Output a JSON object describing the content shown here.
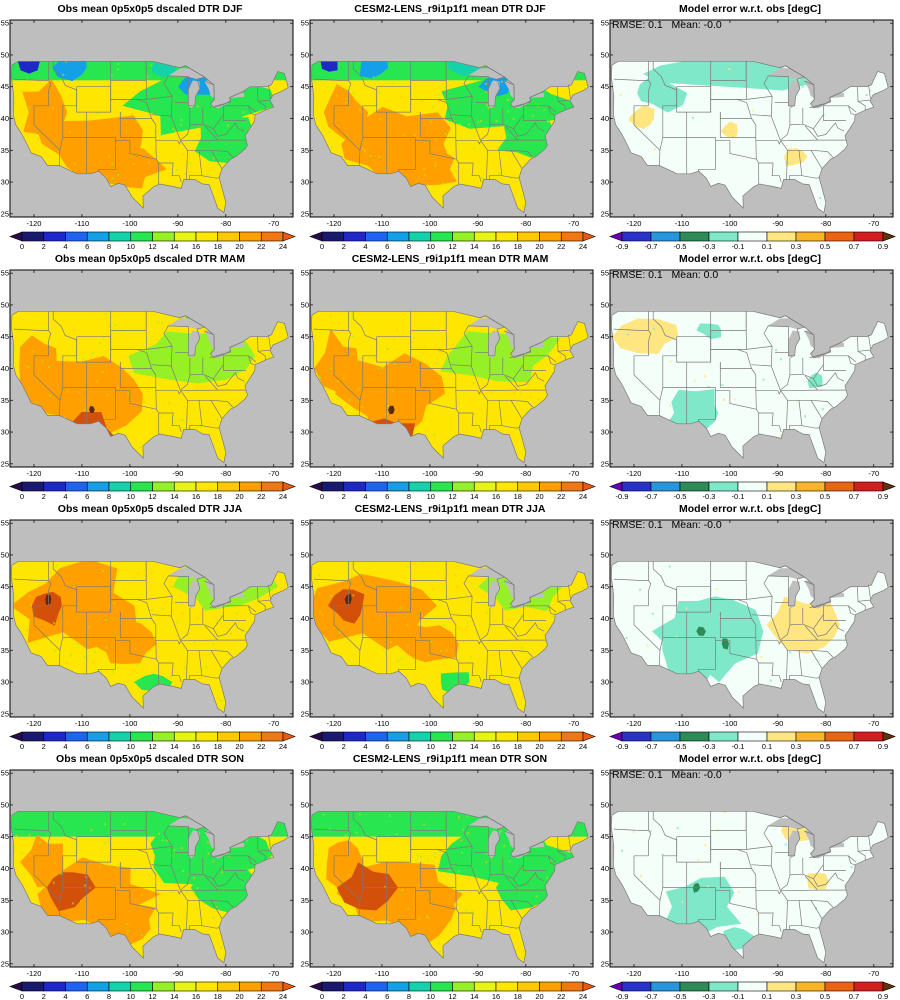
{
  "figure": {
    "panels": [
      {
        "title": "Obs mean 0p5x0p5 dscaled DTR DJF",
        "kind": "obs",
        "season": "DJF"
      },
      {
        "title": "CESM2-LENS_r9i1p1f1 mean DTR DJF",
        "kind": "model",
        "season": "DJF"
      },
      {
        "title": "Model error w.r.t. obs [degC]",
        "kind": "error",
        "season": "DJF",
        "annotation": "RMSE: 0.1   Mean: -0.0"
      },
      {
        "title": "Obs mean 0p5x0p5 dscaled DTR MAM",
        "kind": "obs",
        "season": "MAM"
      },
      {
        "title": "CESM2-LENS_r9i1p1f1 mean DTR MAM",
        "kind": "model",
        "season": "MAM"
      },
      {
        "title": "Model error w.r.t. obs [degC]",
        "kind": "error",
        "season": "MAM",
        "annotation": "RMSE: 0.1   Mean: 0.0"
      },
      {
        "title": "Obs mean 0p5x0p5 dscaled DTR JJA",
        "kind": "obs",
        "season": "JJA"
      },
      {
        "title": "CESM2-LENS_r9i1p1f1 mean DTR JJA",
        "kind": "model",
        "season": "JJA"
      },
      {
        "title": "Model error w.r.t. obs [degC]",
        "kind": "error",
        "season": "JJA",
        "annotation": "RMSE: 0.1   Mean: -0.0"
      },
      {
        "title": "Obs mean 0p5x0p5 dscaled DTR SON",
        "kind": "obs",
        "season": "SON"
      },
      {
        "title": "CESM2-LENS_r9i1p1f1 mean DTR SON",
        "kind": "model",
        "season": "SON"
      },
      {
        "title": "Model error w.r.t. obs [degC]",
        "kind": "error",
        "season": "SON",
        "annotation": "RMSE: 0.1   Mean: -0.0"
      }
    ],
    "lon_ticks": [
      -120,
      -110,
      -100,
      -90,
      -80,
      -70
    ],
    "lat_ticks": [
      25,
      30,
      35,
      40,
      45,
      50,
      55
    ],
    "lon_range": [
      -125,
      -66
    ],
    "lat_range": [
      24.5,
      55.5
    ],
    "obs_colorbar": {
      "labels": [
        "0",
        "2",
        "4",
        "6",
        "8",
        "10",
        "12",
        "14",
        "16",
        "18",
        "20",
        "22",
        "24"
      ],
      "colors": [
        "#2a0a4a",
        "#191970",
        "#1e28c8",
        "#1e64f0",
        "#14a0e6",
        "#14d2aa",
        "#28e650",
        "#96f028",
        "#e6f514",
        "#ffe600",
        "#ffc800",
        "#ffa000",
        "#f07814",
        "#e65a14"
      ]
    },
    "error_colorbar": {
      "labels": [
        "-0.9",
        "-0.7",
        "-0.5",
        "-0.3",
        "-0.1",
        "0.1",
        "0.3",
        "0.5",
        "0.7",
        "0.9"
      ],
      "colors": [
        "#6a00b4",
        "#2832c8",
        "#2896dc",
        "#2e8b57",
        "#7ee8c8",
        "#f5fffa",
        "#ffe680",
        "#fab428",
        "#eb6414",
        "#d21e1e",
        "#64320a"
      ]
    },
    "colors": {
      "missing": "#bebebe",
      "obs_field": {
        "north": "#28e650",
        "mid": "#ffe600",
        "south": "#ffa000",
        "hot": "#d2500a",
        "peak": "#5a2814"
      },
      "error_field": {
        "base": "#f5fffa",
        "negative": "#7ee8c8",
        "positive": "#ffe680",
        "strong_negative": "#2e8b57"
      },
      "boundaries": "#7a7a7a"
    }
  }
}
